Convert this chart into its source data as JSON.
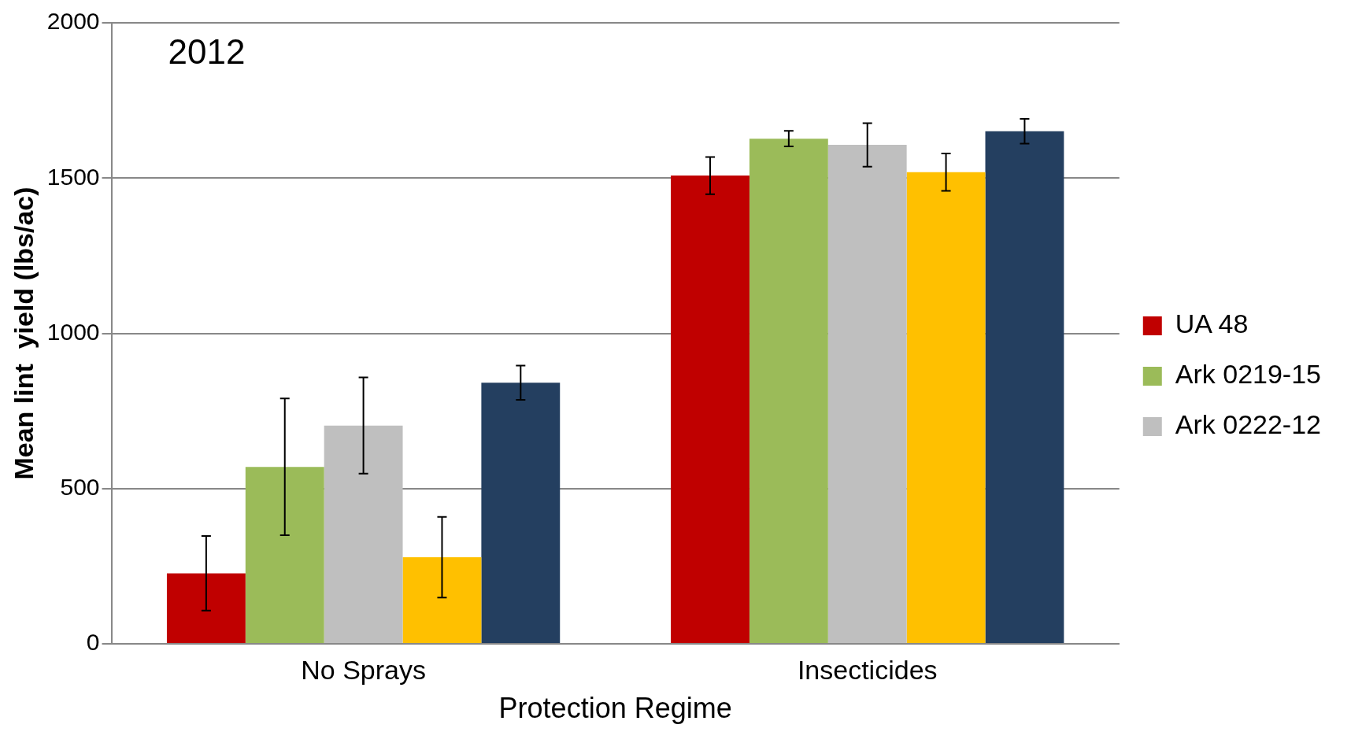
{
  "chart_data": {
    "type": "bar",
    "xlabel": "Protection Regime",
    "ylabel": "Mean lint  yield (lbs/ac)",
    "categories": [
      "No Sprays",
      "Insecticides"
    ],
    "series": [
      {
        "name": "UA 48",
        "color": "#c00000",
        "values": [
          227,
          1508
        ],
        "errors": [
          120,
          60
        ]
      },
      {
        "name": "Ark 0219-15",
        "color": "#9bbb59",
        "values": [
          570,
          1627
        ],
        "errors": [
          220,
          25
        ]
      },
      {
        "name": "Ark 0222-12",
        "color": "#bfbfbf",
        "values": [
          703,
          1607
        ],
        "errors": [
          155,
          70
        ]
      },
      {
        "color": "#ffc000",
        "values": [
          279,
          1519
        ],
        "errors": [
          130,
          60
        ]
      },
      {
        "color": "#243f60",
        "values": [
          841,
          1651
        ],
        "errors": [
          55,
          40
        ]
      }
    ],
    "ylim": [
      0,
      2000
    ],
    "yticks": [
      0,
      500,
      1000,
      1500,
      2000
    ],
    "grid": "y",
    "legend": "right",
    "annotations": [
      "2012"
    ]
  }
}
